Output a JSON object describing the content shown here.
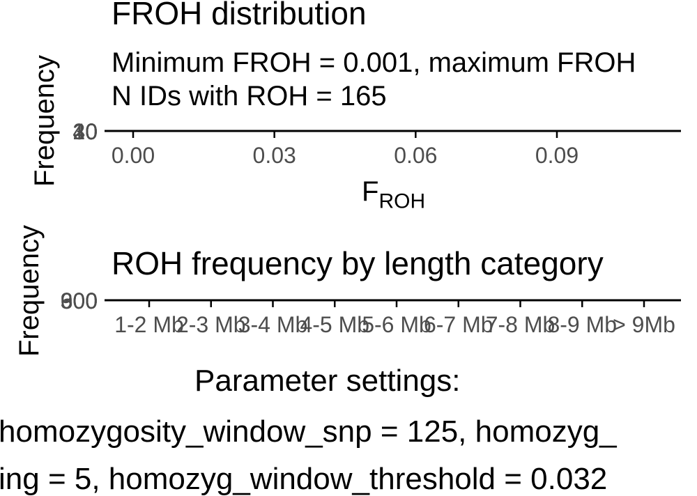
{
  "chart_data": [
    {
      "type": "bar",
      "title": "FROH distribution",
      "subtitle_lines": [
        "Minimum FROH = 0.001, maximum FROH",
        "N IDs with ROH = 165"
      ],
      "xlabel_main": "F",
      "xlabel_sub": "ROH",
      "ylabel": "Frequency",
      "xticks": [
        "0.00",
        "0.03",
        "0.06",
        "0.09"
      ],
      "xtick_values": [
        0.0,
        0.03,
        0.06,
        0.09
      ],
      "xlim": [
        0.0,
        0.12
      ],
      "yticks": [
        "0",
        "10",
        "20",
        "30",
        "40"
      ]
    },
    {
      "type": "bar",
      "title": "ROH frequency by length category",
      "ylabel": "Frequency",
      "categories": [
        "1-2 Mb",
        "2-3 Mb",
        "3-4 Mb",
        "4-5 Mb",
        "5-6 Mb",
        "6-7 Mb",
        "7-8 Mb",
        "8-9 Mb",
        "> 9Mb"
      ],
      "yticks": [
        "0",
        "300",
        "600",
        "900"
      ]
    }
  ],
  "params": {
    "heading": "Parameter settings:",
    "line1": "homozygosity_window_snp = 125, homozyg_",
    "line2": "ing = 5, homozyg_window_threshold = 0.032"
  }
}
